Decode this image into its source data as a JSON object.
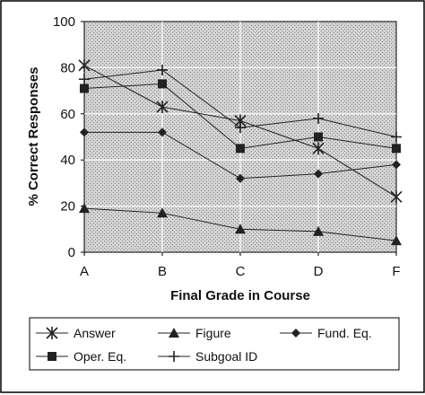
{
  "chart_data": {
    "type": "line",
    "categories": [
      "A",
      "B",
      "C",
      "D",
      "F"
    ],
    "xlabel": "Final Grade in Course",
    "ylabel": "% Correct Responses",
    "ylim": [
      0,
      100
    ],
    "yticks": [
      "0",
      "20",
      "40",
      "60",
      "80",
      "100"
    ],
    "grid": true,
    "legend_position": "bottom",
    "series": [
      {
        "name": "Answer",
        "marker": "asterisk",
        "values": [
          81,
          63,
          57,
          45,
          24
        ]
      },
      {
        "name": "Figure",
        "marker": "triangle",
        "values": [
          19,
          17,
          10,
          9,
          5
        ]
      },
      {
        "name": "Fund. Eq.",
        "marker": "diamond",
        "values": [
          52,
          52,
          32,
          34,
          38
        ]
      },
      {
        "name": "Oper. Eq.",
        "marker": "square",
        "values": [
          71,
          73,
          45,
          50,
          45
        ]
      },
      {
        "name": "Subgoal ID",
        "marker": "plus",
        "values": [
          75,
          79,
          54,
          58,
          50
        ]
      }
    ]
  },
  "colors": {
    "plot_background": "#c8c8c8",
    "grid": "#ffffff",
    "line": "#222222",
    "frame": "#000000"
  }
}
